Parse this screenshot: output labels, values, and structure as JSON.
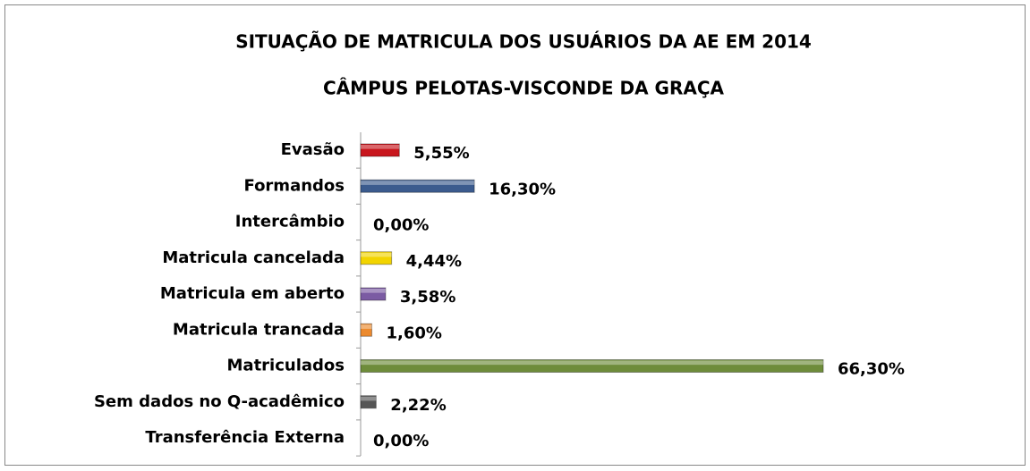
{
  "chart_data": {
    "type": "bar",
    "orientation": "horizontal",
    "title": "SITUAÇÃO DE MATRICULA DOS USUÁRIOS DA AE EM 2014",
    "subtitle": "CÂMPUS PELOTAS-VISCONDE DA GRAÇA",
    "categories": [
      "Evasão",
      "Formandos",
      "Intercâmbio",
      "Matricula cancelada",
      "Matricula em aberto",
      "Matricula trancada",
      "Matriculados",
      "Sem dados no Q-acadêmico",
      "Transferência Externa"
    ],
    "values": [
      5.55,
      16.3,
      0.0,
      4.44,
      3.58,
      1.6,
      66.3,
      2.22,
      0.0
    ],
    "value_labels": [
      "5,55%",
      "16,30%",
      "0,00%",
      "4,44%",
      "3,58%",
      "1,60%",
      "66,30%",
      "2,22%",
      "0,00%"
    ],
    "colors": [
      "#c8161d",
      "#3b5b8e",
      "#2f8fbf",
      "#f2d400",
      "#7b5ba3",
      "#ec8a2e",
      "#6e8c3a",
      "#555555",
      "#2f8fbf"
    ]
  }
}
